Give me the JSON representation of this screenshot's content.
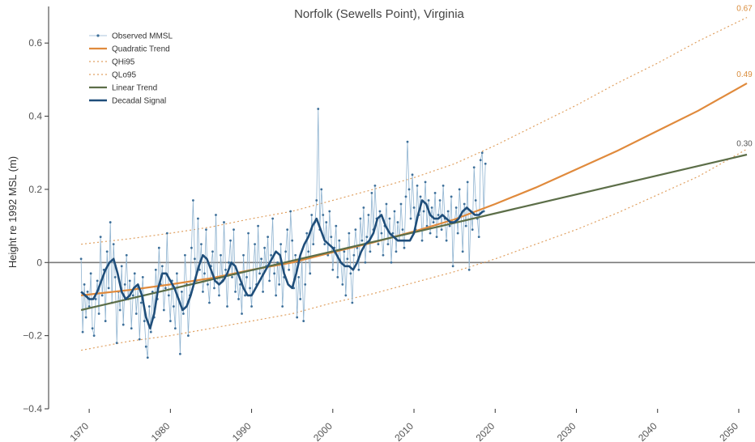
{
  "chart_data": {
    "type": "line",
    "title": "Norfolk (Sewells Point), Virginia",
    "xlabel": "",
    "ylabel": "Height re 1992 MSL (m)",
    "xlim": [
      1965,
      2052
    ],
    "ylim": [
      -0.4,
      0.7
    ],
    "x_ticks": [
      1970,
      1980,
      1990,
      2000,
      2010,
      2020,
      2030,
      2040,
      2050
    ],
    "x_tick_labels": [
      "1970",
      "1980",
      "1990",
      "2000",
      "2010",
      "2020",
      "2030",
      "2040",
      "2050"
    ],
    "y_ticks": [
      -0.4,
      -0.2,
      0,
      0.2,
      0.4,
      0.6
    ],
    "y_tick_labels": [
      "−0.4",
      "−0.2",
      "0",
      "0.2",
      "0.4",
      "0.6"
    ],
    "zero_line": true,
    "grid": false,
    "legend_position": "top-left",
    "end_labels": [
      {
        "series": "QHi95",
        "value": 0.67,
        "text": "0.67",
        "color": "#d98b3a"
      },
      {
        "series": "Quadratic Trend",
        "value": 0.49,
        "text": "0.49",
        "color": "#d98b3a"
      },
      {
        "series": "Linear Trend",
        "value": 0.3,
        "text": "0.30",
        "color": "#555555"
      }
    ],
    "series": [
      {
        "name": "Observed MMSL",
        "style": "line-markers",
        "color": "#8fb3d0",
        "x": [
          1969.0,
          1969.2,
          1969.4,
          1969.6,
          1969.8,
          1970.0,
          1970.2,
          1970.4,
          1970.6,
          1970.8,
          1971.0,
          1971.2,
          1971.4,
          1971.6,
          1971.8,
          1972.0,
          1972.2,
          1972.4,
          1972.6,
          1972.8,
          1973.0,
          1973.2,
          1973.4,
          1973.6,
          1973.8,
          1974.0,
          1974.2,
          1974.4,
          1974.6,
          1974.8,
          1975.0,
          1975.2,
          1975.4,
          1975.6,
          1975.8,
          1976.0,
          1976.2,
          1976.4,
          1976.6,
          1976.8,
          1977.0,
          1977.2,
          1977.4,
          1977.6,
          1977.8,
          1978.0,
          1978.2,
          1978.4,
          1978.6,
          1978.8,
          1979.0,
          1979.2,
          1979.4,
          1979.6,
          1979.8,
          1980.0,
          1980.2,
          1980.4,
          1980.6,
          1980.8,
          1981.0,
          1981.2,
          1981.4,
          1981.6,
          1981.8,
          1982.0,
          1982.2,
          1982.4,
          1982.6,
          1982.8,
          1983.0,
          1983.2,
          1983.4,
          1983.6,
          1983.8,
          1984.0,
          1984.2,
          1984.4,
          1984.6,
          1984.8,
          1985.0,
          1985.2,
          1985.4,
          1985.6,
          1985.8,
          1986.0,
          1986.2,
          1986.4,
          1986.6,
          1986.8,
          1987.0,
          1987.2,
          1987.4,
          1987.6,
          1987.8,
          1988.0,
          1988.2,
          1988.4,
          1988.6,
          1988.8,
          1989.0,
          1989.2,
          1989.4,
          1989.6,
          1989.8,
          1990.0,
          1990.2,
          1990.4,
          1990.6,
          1990.8,
          1991.0,
          1991.2,
          1991.4,
          1991.6,
          1991.8,
          1992.0,
          1992.2,
          1992.4,
          1992.6,
          1992.8,
          1993.0,
          1993.2,
          1993.4,
          1993.6,
          1993.8,
          1994.0,
          1994.2,
          1994.4,
          1994.6,
          1994.8,
          1995.0,
          1995.2,
          1995.4,
          1995.6,
          1995.8,
          1996.0,
          1996.2,
          1996.4,
          1996.6,
          1996.8,
          1997.0,
          1997.2,
          1997.4,
          1997.6,
          1997.8,
          1998.0,
          1998.2,
          1998.4,
          1998.6,
          1998.8,
          1999.0,
          1999.2,
          1999.4,
          1999.6,
          1999.8,
          2000.0,
          2000.2,
          2000.4,
          2000.6,
          2000.8,
          2001.0,
          2001.2,
          2001.4,
          2001.6,
          2001.8,
          2002.0,
          2002.2,
          2002.4,
          2002.6,
          2002.8,
          2003.0,
          2003.2,
          2003.4,
          2003.6,
          2003.8,
          2004.0,
          2004.2,
          2004.4,
          2004.6,
          2004.8,
          2005.0,
          2005.2,
          2005.4,
          2005.6,
          2005.8,
          2006.0,
          2006.2,
          2006.4,
          2006.6,
          2006.8,
          2007.0,
          2007.2,
          2007.4,
          2007.6,
          2007.8,
          2008.0,
          2008.2,
          2008.4,
          2008.6,
          2008.8,
          2009.0,
          2009.2,
          2009.4,
          2009.6,
          2009.8,
          2010.0,
          2010.2,
          2010.4,
          2010.6,
          2010.8,
          2011.0,
          2011.2,
          2011.4,
          2011.6,
          2011.8,
          2012.0,
          2012.2,
          2012.4,
          2012.6,
          2012.8,
          2013.0,
          2013.2,
          2013.4,
          2013.6,
          2013.8,
          2014.0,
          2014.2,
          2014.4,
          2014.6,
          2014.8,
          2015.0,
          2015.2,
          2015.4,
          2015.6,
          2015.8,
          2016.0,
          2016.2,
          2016.4,
          2016.6,
          2016.8,
          2017.0,
          2017.2,
          2017.4,
          2017.6,
          2017.8,
          2018.0,
          2018.2,
          2018.4,
          2018.6,
          2018.8
        ],
        "y": [
          0.01,
          -0.19,
          -0.06,
          -0.15,
          -0.08,
          -0.12,
          -0.03,
          -0.18,
          -0.2,
          -0.1,
          -0.05,
          -0.14,
          0.07,
          -0.09,
          -0.02,
          -0.16,
          0.03,
          -0.07,
          0.11,
          -0.11,
          0.05,
          -0.04,
          -0.22,
          -0.08,
          -0.13,
          -0.01,
          -0.17,
          -0.06,
          0.02,
          -0.1,
          -0.05,
          -0.18,
          -0.09,
          -0.03,
          -0.14,
          -0.07,
          -0.21,
          -0.11,
          -0.04,
          -0.16,
          -0.23,
          -0.26,
          -0.12,
          -0.19,
          -0.08,
          -0.15,
          -0.02,
          -0.1,
          0.04,
          -0.06,
          -0.01,
          -0.13,
          -0.07,
          0.08,
          -0.09,
          -0.16,
          -0.05,
          -0.12,
          -0.18,
          -0.03,
          -0.1,
          -0.25,
          -0.08,
          -0.14,
          0.02,
          -0.06,
          -0.2,
          -0.09,
          0.04,
          0.17,
          0.01,
          -0.05,
          0.12,
          -0.02,
          0.05,
          -0.08,
          -0.03,
          0.09,
          -0.06,
          -0.11,
          -0.01,
          0.03,
          -0.07,
          0.13,
          -0.04,
          -0.09,
          0.02,
          -0.05,
          0.11,
          -0.02,
          -0.12,
          0.0,
          0.06,
          -0.04,
          0.09,
          -0.08,
          -0.03,
          -0.1,
          -0.06,
          -0.14,
          0.02,
          -0.09,
          -0.04,
          0.08,
          -0.07,
          -0.12,
          -0.02,
          0.05,
          -0.06,
          0.1,
          -0.03,
          0.01,
          -0.08,
          0.04,
          -0.01,
          0.07,
          -0.05,
          0.02,
          0.12,
          -0.03,
          -0.09,
          0.0,
          -0.06,
          0.05,
          -0.12,
          -0.04,
          0.03,
          0.09,
          -0.02,
          0.14,
          0.06,
          -0.07,
          0.02,
          -0.15,
          -0.04,
          -0.1,
          0.01,
          -0.16,
          -0.06,
          0.08,
          0.03,
          -0.03,
          0.13,
          0.05,
          0.11,
          0.17,
          0.42,
          0.09,
          0.2,
          0.13,
          0.05,
          0.11,
          0.02,
          0.14,
          0.07,
          -0.02,
          0.04,
          0.1,
          -0.04,
          0.06,
          0.0,
          -0.06,
          0.03,
          -0.09,
          0.01,
          0.08,
          -0.03,
          -0.11,
          0.02,
          0.09,
          0.04,
          -0.02,
          0.12,
          0.06,
          0.15,
          0.0,
          0.07,
          0.13,
          0.03,
          0.19,
          0.09,
          0.21,
          0.12,
          0.05,
          0.14,
          0.08,
          0.02,
          0.1,
          0.16,
          0.05,
          0.12,
          0.0,
          0.08,
          0.14,
          0.03,
          0.11,
          0.06,
          0.16,
          0.09,
          0.04,
          0.18,
          0.33,
          0.2,
          0.12,
          0.24,
          0.15,
          0.09,
          0.21,
          0.13,
          0.18,
          0.06,
          0.14,
          0.22,
          0.1,
          0.17,
          0.08,
          0.15,
          0.11,
          0.19,
          0.07,
          0.13,
          0.17,
          0.09,
          0.21,
          0.12,
          0.06,
          0.14,
          0.1,
          0.18,
          -0.01,
          0.11,
          0.15,
          0.08,
          0.2,
          0.13,
          0.03,
          0.16,
          0.1,
          0.22,
          -0.02,
          0.14,
          0.09,
          0.26,
          0.17,
          0.12,
          0.07,
          0.28,
          0.3,
          0.14,
          0.27
        ]
      },
      {
        "name": "Quadratic Trend",
        "style": "solid",
        "color": "#e08a3c",
        "x": [
          1969,
          1975,
          1980,
          1985,
          1990,
          1995,
          2000,
          2005,
          2010,
          2015,
          2020,
          2025,
          2030,
          2035,
          2040,
          2045,
          2051
        ],
        "y": [
          -0.09,
          -0.075,
          -0.06,
          -0.043,
          -0.02,
          0.0,
          0.028,
          0.055,
          0.085,
          0.118,
          0.16,
          0.205,
          0.255,
          0.305,
          0.36,
          0.415,
          0.49
        ]
      },
      {
        "name": "QHi95",
        "style": "dotted",
        "color": "#e0a060",
        "x": [
          1969,
          1975,
          1980,
          1985,
          1990,
          1995,
          2000,
          2005,
          2010,
          2015,
          2020,
          2025,
          2030,
          2035,
          2040,
          2045,
          2051
        ],
        "y": [
          0.05,
          0.065,
          0.08,
          0.097,
          0.12,
          0.14,
          0.17,
          0.2,
          0.232,
          0.27,
          0.32,
          0.375,
          0.43,
          0.49,
          0.545,
          0.605,
          0.67
        ]
      },
      {
        "name": "QLo95",
        "style": "dotted",
        "color": "#e0a060",
        "x": [
          1969,
          1975,
          1980,
          1985,
          1990,
          1995,
          2000,
          2005,
          2010,
          2015,
          2020,
          2025,
          2030,
          2035,
          2040,
          2045,
          2051
        ],
        "y": [
          -0.24,
          -0.215,
          -0.2,
          -0.18,
          -0.16,
          -0.14,
          -0.11,
          -0.085,
          -0.055,
          -0.025,
          0.01,
          0.05,
          0.09,
          0.135,
          0.185,
          0.235,
          0.31
        ]
      },
      {
        "name": "Linear Trend",
        "style": "solid",
        "color": "#5c6e48",
        "x": [
          1969,
          2051
        ],
        "y": [
          -0.13,
          0.295
        ]
      },
      {
        "name": "Decadal Signal",
        "style": "solid-thick",
        "color": "#1f4e7a",
        "x": [
          1969.0,
          1969.5,
          1970.0,
          1970.5,
          1971.0,
          1971.5,
          1972.0,
          1972.5,
          1973.0,
          1973.5,
          1974.0,
          1974.5,
          1975.0,
          1975.5,
          1976.0,
          1976.5,
          1977.0,
          1977.5,
          1978.0,
          1978.5,
          1979.0,
          1979.5,
          1980.0,
          1980.5,
          1981.0,
          1981.5,
          1982.0,
          1982.5,
          1983.0,
          1983.5,
          1984.0,
          1984.5,
          1985.0,
          1985.5,
          1986.0,
          1986.5,
          1987.0,
          1987.5,
          1988.0,
          1988.5,
          1989.0,
          1989.5,
          1990.0,
          1990.5,
          1991.0,
          1991.5,
          1992.0,
          1992.5,
          1993.0,
          1993.5,
          1994.0,
          1994.5,
          1995.0,
          1995.5,
          1996.0,
          1996.5,
          1997.0,
          1997.5,
          1998.0,
          1998.5,
          1999.0,
          1999.5,
          2000.0,
          2000.5,
          2001.0,
          2001.5,
          2002.0,
          2002.5,
          2003.0,
          2003.5,
          2004.0,
          2004.5,
          2005.0,
          2005.5,
          2006.0,
          2006.5,
          2007.0,
          2007.5,
          2008.0,
          2008.5,
          2009.0,
          2009.5,
          2010.0,
          2010.5,
          2011.0,
          2011.5,
          2012.0,
          2012.5,
          2013.0,
          2013.5,
          2014.0,
          2014.5,
          2015.0,
          2015.5,
          2016.0,
          2016.5,
          2017.0,
          2017.5,
          2018.0,
          2018.5
        ],
        "y": [
          -0.08,
          -0.09,
          -0.1,
          -0.1,
          -0.08,
          -0.05,
          -0.02,
          0.0,
          0.01,
          -0.03,
          -0.08,
          -0.1,
          -0.09,
          -0.07,
          -0.06,
          -0.09,
          -0.15,
          -0.18,
          -0.14,
          -0.07,
          -0.03,
          -0.03,
          -0.05,
          -0.07,
          -0.1,
          -0.13,
          -0.12,
          -0.09,
          -0.05,
          -0.01,
          0.02,
          0.01,
          -0.02,
          -0.05,
          -0.06,
          -0.05,
          -0.03,
          0.0,
          -0.01,
          -0.04,
          -0.07,
          -0.09,
          -0.09,
          -0.07,
          -0.05,
          -0.03,
          -0.01,
          0.01,
          0.03,
          0.02,
          -0.03,
          -0.06,
          -0.07,
          -0.03,
          0.02,
          0.05,
          0.07,
          0.1,
          0.12,
          0.09,
          0.06,
          0.05,
          0.04,
          0.02,
          0.0,
          -0.01,
          -0.01,
          -0.02,
          0.0,
          0.03,
          0.05,
          0.06,
          0.08,
          0.12,
          0.13,
          0.1,
          0.08,
          0.07,
          0.06,
          0.06,
          0.06,
          0.06,
          0.08,
          0.13,
          0.17,
          0.16,
          0.13,
          0.12,
          0.12,
          0.13,
          0.12,
          0.11,
          0.11,
          0.12,
          0.14,
          0.15,
          0.14,
          0.13,
          0.13,
          0.14
        ]
      }
    ]
  }
}
